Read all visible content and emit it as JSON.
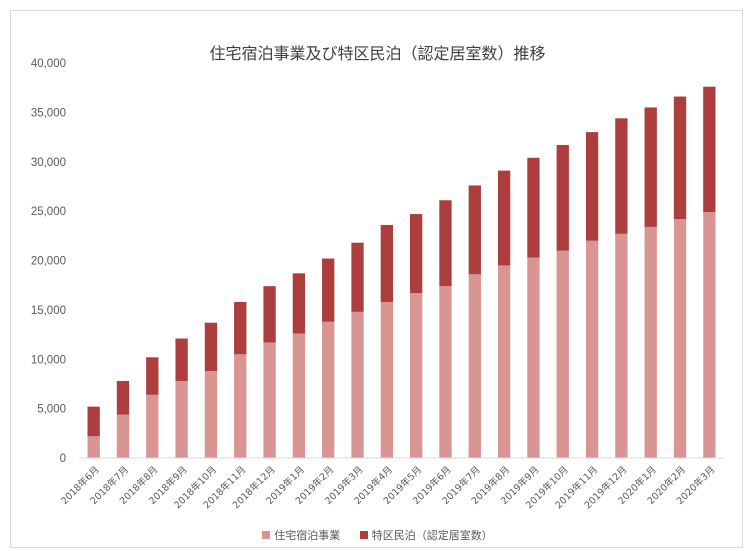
{
  "chart_data": {
    "type": "bar",
    "stacked": true,
    "title": "住宅宿泊事業及び特区民泊（認定居室数）推移",
    "xlabel": "",
    "ylabel": "",
    "ylim": [
      0,
      40000
    ],
    "yticks": [
      "0",
      "5,000",
      "10,000",
      "15,000",
      "20,000",
      "25,000",
      "30,000",
      "35,000",
      "40,000"
    ],
    "grid": false,
    "legend_position": "bottom",
    "categories": [
      "2018年6月",
      "2018年7月",
      "2018年8月",
      "2018年9月",
      "2018年10月",
      "2018年11月",
      "2018年12月",
      "2019年1月",
      "2019年2月",
      "2019年3月",
      "2019年4月",
      "2019年5月",
      "2019年6月",
      "2019年7月",
      "2019年8月",
      "2019年9月",
      "2019年10月",
      "2019年11月",
      "2019年12月",
      "2020年1月",
      "2020年2月",
      "2020年3月"
    ],
    "series": [
      {
        "name": "住宅宿泊事業",
        "color": "#d99594",
        "values": [
          2200,
          4400,
          6400,
          7800,
          8800,
          10500,
          11700,
          12600,
          13800,
          14800,
          15800,
          16700,
          17400,
          18600,
          19500,
          20300,
          21000,
          22000,
          22700,
          23400,
          24200,
          24900
        ]
      },
      {
        "name": "特区民泊（認定居室数）",
        "color": "#ac3e3e",
        "values": [
          3000,
          3400,
          3800,
          4300,
          4900,
          5300,
          5700,
          6100,
          6400,
          7000,
          7800,
          8000,
          8700,
          9000,
          9600,
          10100,
          10700,
          11000,
          11700,
          12100,
          12400,
          12700
        ]
      }
    ]
  }
}
